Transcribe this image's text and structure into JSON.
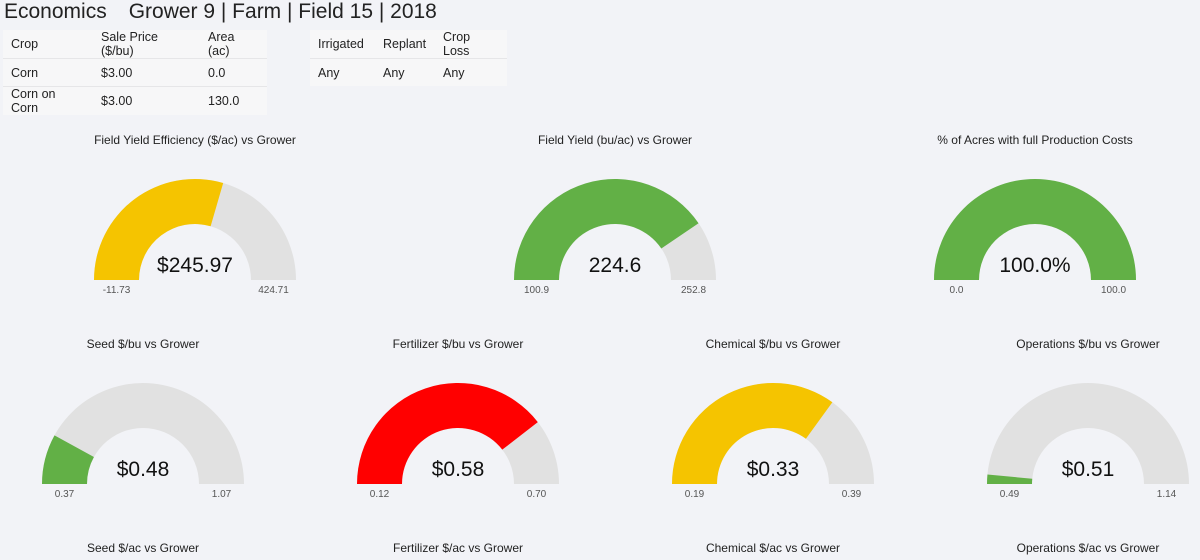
{
  "header": {
    "app_title": "Economics",
    "context": "Grower 9 | Farm | Field 15 | 2018"
  },
  "crop_table": {
    "headers": [
      "Crop",
      "Sale Price ($/bu)",
      "Area (ac)"
    ],
    "rows": [
      [
        "Corn",
        "$3.00",
        "0.0"
      ],
      [
        "Corn on Corn",
        "$3.00",
        "130.0"
      ]
    ]
  },
  "flags_table": {
    "headers": [
      "Irrigated",
      "Replant",
      "Crop Loss"
    ],
    "rows": [
      [
        "Any",
        "Any",
        "Any"
      ]
    ]
  },
  "colors": {
    "green": "#62b046",
    "yellow": "#f5c400",
    "red": "#ff0000",
    "track": "#e1e1e1"
  },
  "gauges": [
    {
      "title": "Field Yield Efficiency ($/ac) vs Grower",
      "value": "$245.97",
      "min": "-11.73",
      "max": "424.71",
      "fraction": 0.59,
      "color": "yellow"
    },
    {
      "title": "Field Yield (bu/ac) vs Grower",
      "value": "224.6",
      "min": "100.9",
      "max": "252.8",
      "fraction": 0.81,
      "color": "green"
    },
    {
      "title": "% of Acres with full Production Costs",
      "value": "100.0%",
      "min": "0.0",
      "max": "100.0",
      "fraction": 1.0,
      "color": "green"
    },
    {
      "title": "Seed $/bu vs Grower",
      "value": "$0.48",
      "min": "0.37",
      "max": "1.07",
      "fraction": 0.16,
      "color": "green"
    },
    {
      "title": "Fertilizer $/bu vs Grower",
      "value": "$0.58",
      "min": "0.12",
      "max": "0.70",
      "fraction": 0.79,
      "color": "red"
    },
    {
      "title": "Chemical $/bu vs Grower",
      "value": "$0.33",
      "min": "0.19",
      "max": "0.39",
      "fraction": 0.7,
      "color": "yellow"
    },
    {
      "title": "Operations $/bu vs Grower",
      "value": "$0.51",
      "min": "0.49",
      "max": "1.14",
      "fraction": 0.03,
      "color": "green"
    },
    {
      "title": "Seed $/ac vs Grower"
    },
    {
      "title": "Fertilizer $/ac vs Grower"
    },
    {
      "title": "Chemical $/ac vs Grower"
    },
    {
      "title": "Operations $/ac vs Grower"
    }
  ]
}
